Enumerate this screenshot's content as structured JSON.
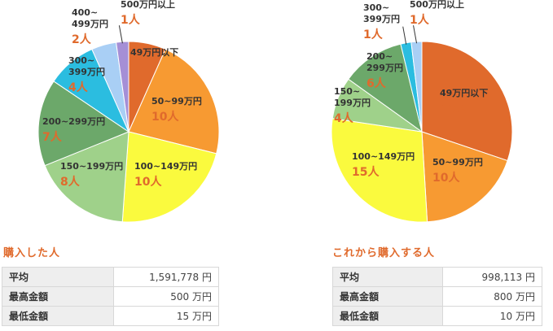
{
  "chart_data": [
    {
      "type": "pie",
      "slices": [
        {
          "label": "49万円以下",
          "count": "3人",
          "value": 3,
          "color": "#e06a2c"
        },
        {
          "label": "50~99万円",
          "count": "10人",
          "value": 10,
          "color": "#f79a32"
        },
        {
          "label": "100~149万円",
          "count": "10人",
          "value": 10,
          "color": "#fafa3e"
        },
        {
          "label": "150~199万円",
          "count": "8人",
          "value": 8,
          "color": "#9fd18a"
        },
        {
          "label": "200~299万円",
          "count": "7人",
          "value": 7,
          "color": "#6ca86a"
        },
        {
          "label": "300~399万円",
          "count": "4人",
          "value": 4,
          "color": "#2bbde0"
        },
        {
          "label": "400~499万円",
          "count": "2人",
          "value": 2,
          "color": "#a9cff5"
        },
        {
          "label": "500万円以上",
          "count": "1人",
          "value": 1,
          "color": "#a58fd6"
        }
      ]
    },
    {
      "type": "pie",
      "slices": [
        {
          "label": "49万円以下",
          "count": "16人",
          "value": 16,
          "color": "#e06a2c"
        },
        {
          "label": "50~99万円",
          "count": "10人",
          "value": 10,
          "color": "#f79a32"
        },
        {
          "label": "100~149万円",
          "count": "15人",
          "value": 15,
          "color": "#fafa3e"
        },
        {
          "label": "150~199万円",
          "count": "4人",
          "value": 4,
          "color": "#9fd18a"
        },
        {
          "label": "200~299万円",
          "count": "6人",
          "value": 6,
          "color": "#6ca86a"
        },
        {
          "label": "300~399万円",
          "count": "1人",
          "value": 1,
          "color": "#2bbde0"
        },
        {
          "label": "500万円以上",
          "count": "1人",
          "value": 1,
          "color": "#a9cff5"
        }
      ]
    }
  ],
  "left": {
    "title": "購入した人",
    "rows": [
      {
        "label": "平均",
        "value": "1,591,778 円"
      },
      {
        "label": "最高金額",
        "value": "500 万円"
      },
      {
        "label": "最低金額",
        "value": "15 万円"
      }
    ]
  },
  "right": {
    "title": "これから購入する人",
    "rows": [
      {
        "label": "平均",
        "value": "998,113 円"
      },
      {
        "label": "最高金額",
        "value": "800 万円"
      },
      {
        "label": "最低金額",
        "value": "10 万円"
      }
    ]
  }
}
